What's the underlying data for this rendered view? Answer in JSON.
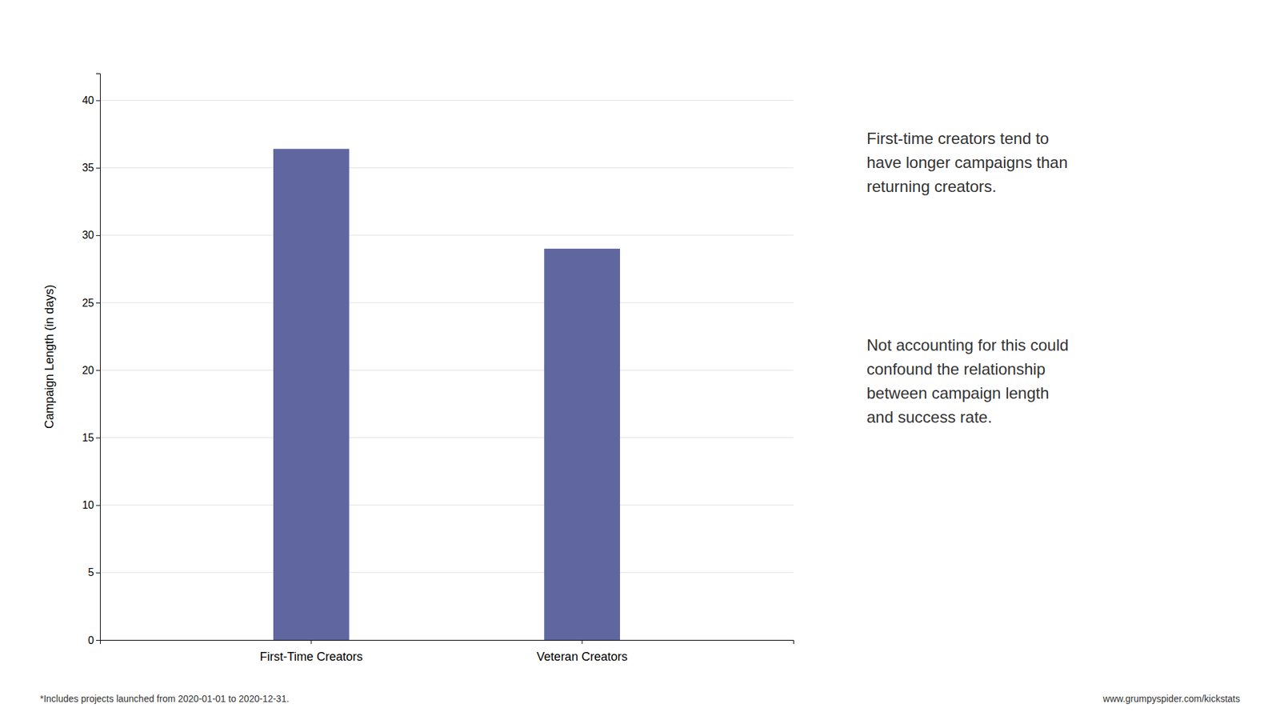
{
  "chart_data": {
    "type": "bar",
    "categories": [
      "First-Time Creators",
      "Veteran Creators"
    ],
    "values": [
      36.4,
      29.0
    ],
    "color": "#6066a0",
    "ylabel": "Campaign Length (in days)",
    "ylim": [
      0,
      42
    ],
    "yticks": [
      0,
      5,
      10,
      15,
      20,
      25,
      30,
      35,
      40
    ],
    "grid": true,
    "annotations": [
      "First-time creators tend to\nhave longer campaigns than\nreturning creators.",
      "Not accounting for this could\nconfound the relationship\nbetween campaign length\nand success rate."
    ],
    "footnotes": [
      "*Includes projects launched from 2020-01-01 to 2020-12-31.",
      "www.grumpyspider.com/kickstats"
    ]
  }
}
